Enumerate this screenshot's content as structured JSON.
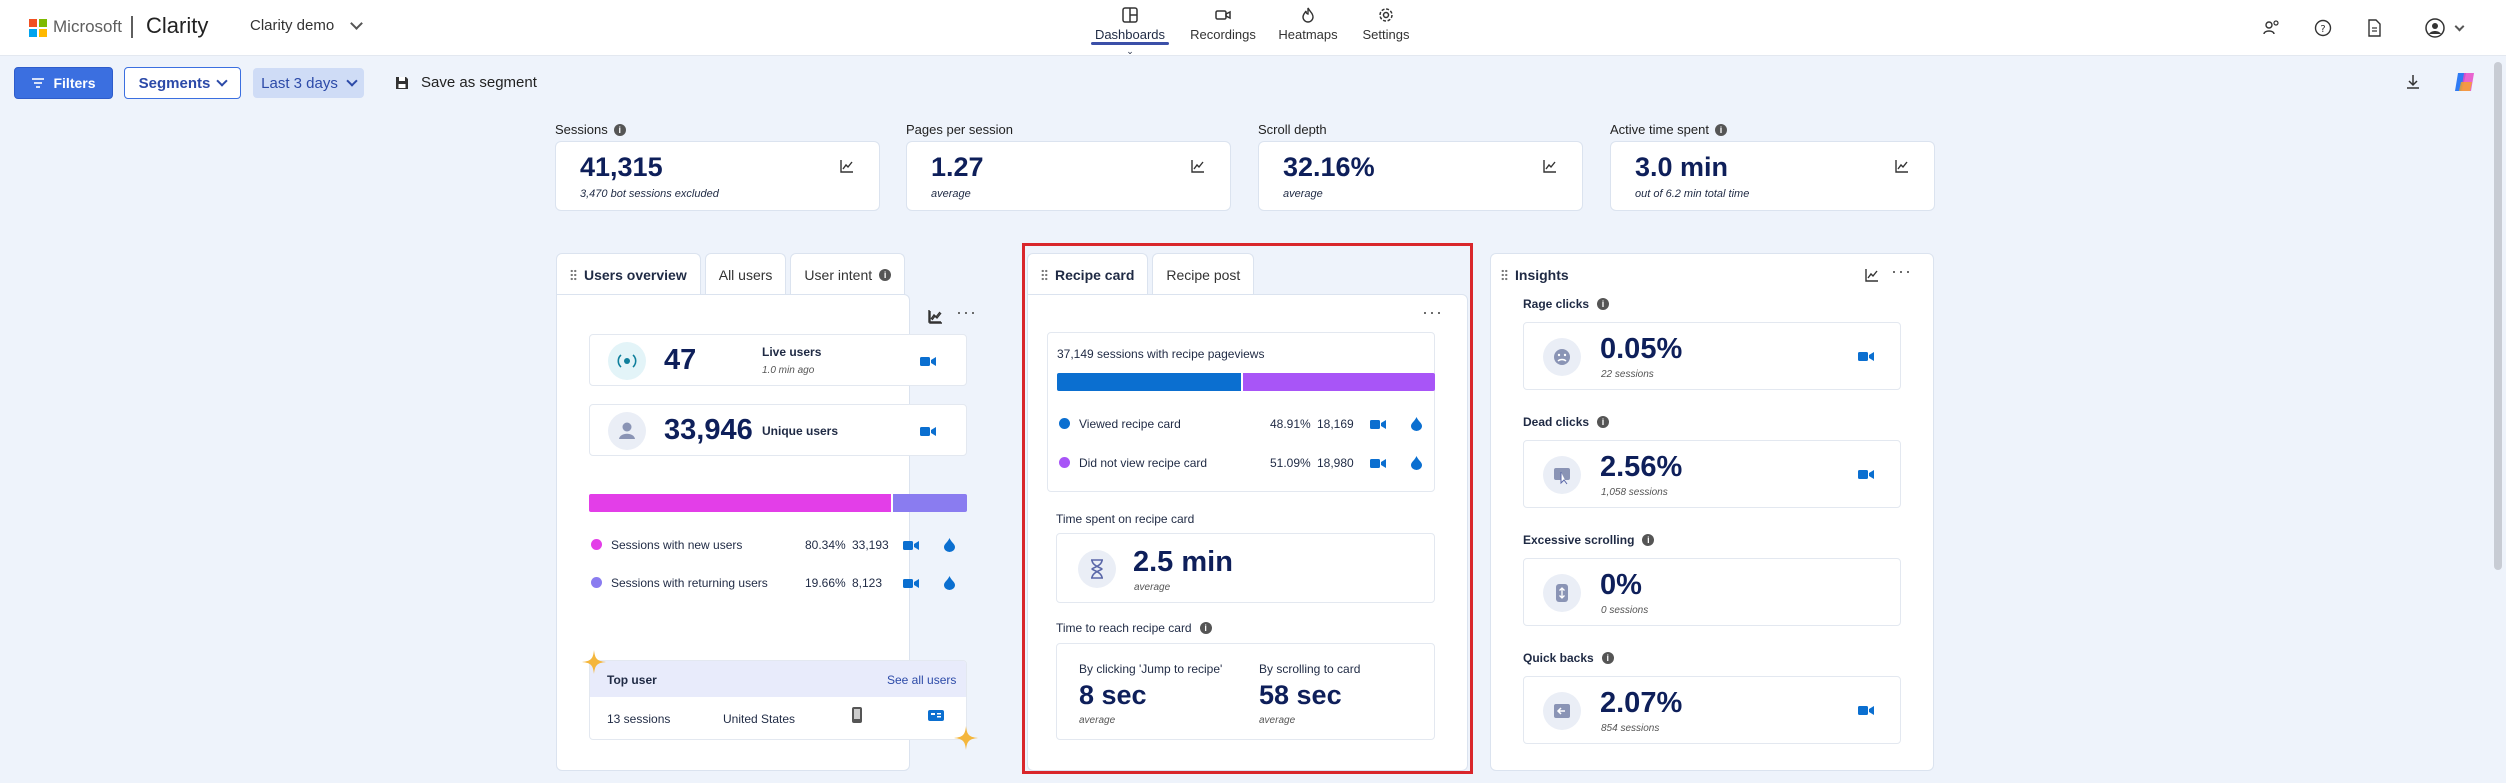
{
  "brand": {
    "ms": "Microsoft",
    "product": "Clarity",
    "project": "Clarity demo",
    "colors": {
      "red": "#f25022",
      "green": "#7fba00",
      "blue": "#00a4ef",
      "yellow": "#ffb900"
    }
  },
  "nav": [
    {
      "label": "Dashboards",
      "icon": "dashboard-icon",
      "active": true
    },
    {
      "label": "Recordings",
      "icon": "video-icon"
    },
    {
      "label": "Heatmaps",
      "icon": "flame-icon"
    },
    {
      "label": "Settings",
      "icon": "gear-icon"
    }
  ],
  "toolbar": {
    "filters": "Filters",
    "segments": "Segments",
    "range": "Last 3 days",
    "save": "Save as segment"
  },
  "metrics": [
    {
      "label": "Sessions",
      "value": "41,315",
      "sub": "3,470 bot sessions excluded",
      "info": true
    },
    {
      "label": "Pages per session",
      "value": "1.27",
      "sub": "average"
    },
    {
      "label": "Scroll depth",
      "value": "32.16%",
      "sub": "average"
    },
    {
      "label": "Active time spent",
      "value": "3.0 min",
      "sub": "out of 6.2 min total time",
      "info": true
    }
  ],
  "users": {
    "tabs": [
      "Users overview",
      "All users",
      "User intent"
    ],
    "live_value": "47",
    "live_label": "Live users",
    "live_sub": "1.0 min ago",
    "unique_value": "33,946",
    "unique_label": "Unique users",
    "split": {
      "new_fraction": 0.8034
    },
    "rows": [
      {
        "label": "Sessions with new users",
        "pct": "80.34%",
        "count": "33,193",
        "color": "#e33ee8"
      },
      {
        "label": "Sessions with returning users",
        "pct": "19.66%",
        "count": "8,123",
        "color": "#8a7cf0"
      }
    ],
    "top_user": {
      "title": "Top user",
      "see_all": "See all users",
      "sessions": "13 sessions",
      "country": "United States"
    }
  },
  "recipe": {
    "tabs": [
      "Recipe card",
      "Recipe post"
    ],
    "sessions_title": "37,149 sessions with recipe pageviews",
    "split": {
      "viewed_fraction": 0.4891
    },
    "rows": [
      {
        "label": "Viewed recipe card",
        "pct": "48.91%",
        "count": "18,169",
        "color": "#0b6fd0"
      },
      {
        "label": "Did not view recipe card",
        "pct": "51.09%",
        "count": "18,980",
        "color": "#a855f7"
      }
    ],
    "time_spent_title": "Time spent on recipe card",
    "time_spent_value": "2.5 min",
    "time_spent_sub": "average",
    "reach_title": "Time to reach recipe card",
    "reach_a_label": "By clicking 'Jump to recipe'",
    "reach_a_value": "8 sec",
    "reach_a_sub": "average",
    "reach_b_label": "By scrolling to card",
    "reach_b_value": "58 sec",
    "reach_b_sub": "average"
  },
  "insights": {
    "title": "Insights",
    "items": [
      {
        "label": "Rage clicks",
        "value": "0.05%",
        "sub": "22 sessions",
        "icon": "angry-face-icon",
        "cam": true
      },
      {
        "label": "Dead clicks",
        "value": "2.56%",
        "sub": "1,058 sessions",
        "icon": "dead-click-icon",
        "cam": true
      },
      {
        "label": "Excessive scrolling",
        "value": "0%",
        "sub": "0 sessions",
        "icon": "scroll-icon",
        "cam": false
      },
      {
        "label": "Quick backs",
        "value": "2.07%",
        "sub": "854 sessions",
        "icon": "back-arrow-icon",
        "cam": true
      }
    ]
  }
}
